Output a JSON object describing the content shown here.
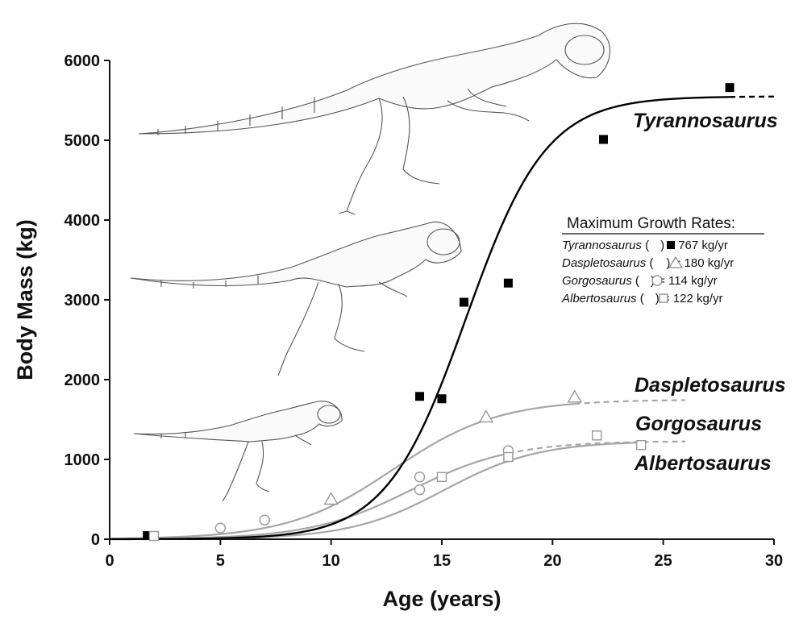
{
  "chart_data": {
    "type": "scatter",
    "xlabel": "Age (years)",
    "ylabel": "Body Mass (kg)",
    "xlim": [
      0,
      30
    ],
    "ylim": [
      0,
      6000
    ],
    "xticks": [
      0,
      5,
      10,
      15,
      20,
      25,
      30
    ],
    "yticks": [
      0,
      1000,
      2000,
      3000,
      4000,
      5000,
      6000
    ],
    "grid": false,
    "series": [
      {
        "name": "Tyrannosaurus",
        "marker": "filled-square",
        "color": "#000000",
        "points": [
          [
            1.7,
            45
          ],
          [
            14,
            1790
          ],
          [
            15,
            1760
          ],
          [
            16,
            2970
          ],
          [
            18,
            3210
          ],
          [
            22.3,
            5010
          ],
          [
            28,
            5660
          ]
        ],
        "curve": {
          "asymptote": 5550,
          "k": 0.553,
          "x0": 16.1,
          "x_solid_end": 28,
          "x_dashed_end": 30
        }
      },
      {
        "name": "Daspletosaurus",
        "marker": "open-triangle",
        "color": "#a6a6a6",
        "points": [
          [
            10,
            500
          ],
          [
            17,
            1530
          ],
          [
            21,
            1780
          ]
        ],
        "curve": {
          "asymptote": 1750,
          "k": 0.42,
          "x0": 12.8,
          "x_solid_end": 21,
          "x_dashed_end": 26
        }
      },
      {
        "name": "Gorgosaurus",
        "marker": "open-circle",
        "color": "#a6a6a6",
        "points": [
          [
            5,
            140
          ],
          [
            7,
            240
          ],
          [
            14,
            780
          ],
          [
            14,
            620
          ],
          [
            18,
            1110
          ]
        ],
        "curve": {
          "asymptote": 1230,
          "k": 0.44,
          "x0": 13.6,
          "x_solid_end": 18,
          "x_dashed_end": 26
        }
      },
      {
        "name": "Albertosaurus",
        "marker": "open-square",
        "color": "#a6a6a6",
        "points": [
          [
            2,
            40
          ],
          [
            15,
            780
          ],
          [
            18,
            1030
          ],
          [
            22,
            1300
          ],
          [
            24,
            1180
          ]
        ],
        "curve": {
          "asymptote": 1230,
          "k": 0.47,
          "x0": 15.1,
          "x_solid_end": 24,
          "x_dashed_end": 24
        }
      }
    ],
    "species_labels": [
      "Tyrannosaurus",
      "Daspletosaurus",
      "Gorgosaurus",
      "Albertosaurus"
    ],
    "legend": {
      "title": "Maximum Growth Rates:",
      "entries": [
        {
          "species": "Tyrannosaurus",
          "marker": "filled-square",
          "rate": "= 767 kg/yr"
        },
        {
          "species": "Daspletosaurus",
          "marker": "open-triangle",
          "rate": "= 180 kg/yr"
        },
        {
          "species": "Gorgosaurus",
          "marker": "open-circle",
          "rate": "= 114 kg/yr"
        },
        {
          "species": "Albertosaurus",
          "marker": "open-square",
          "rate": "= 122 kg/yr"
        }
      ]
    }
  }
}
